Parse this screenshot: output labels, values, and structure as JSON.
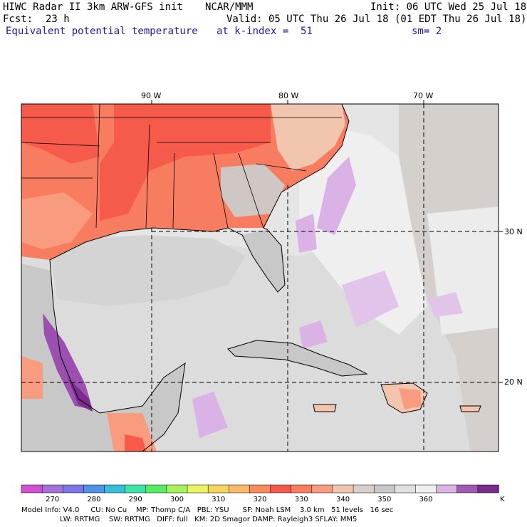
{
  "header": {
    "line1_left": "HIWC Radar II 3km ARW-GFS init",
    "line1_mid": "NCAR/MMM",
    "line1_right": "Init: 06 UTC Wed 25 Jul 18",
    "fcst_label": "Fcst:",
    "fcst_value": "23 h",
    "valid": "Valid: 05 UTC Thu 26 Jul 18 (01 EDT Thu 26 Jul 18)",
    "field_name": "Equivalent potential temperature",
    "k_index": "at k-index =  51",
    "smoothing": "sm= 2"
  },
  "map": {
    "lon_labels": [
      "90 W",
      "80 W",
      "70 W"
    ],
    "lat_labels": [
      "30 N",
      "20 N"
    ],
    "colors": {
      "land_hot": "#f5574a",
      "land_warm": "#f87d60",
      "land_mid": "#f99b7e",
      "land_pale": "#f2c6ae",
      "sea_gray": "#c8c8c8",
      "sea_light": "#e5e5e5",
      "sea_pale": "#efefef",
      "lavender": "#dbb2e6",
      "purple": "#9b50b0",
      "dark_purple": "#7a2c8c"
    }
  },
  "colorbar": {
    "colors": [
      "#d14fd0",
      "#a46fd6",
      "#7c76e6",
      "#4e91e5",
      "#36bfd6",
      "#3ee6a6",
      "#56ed64",
      "#a8f25a",
      "#e9f560",
      "#f6d55f",
      "#fbb866",
      "#f88c5c",
      "#f55a4a",
      "#f87d60",
      "#f99b7e",
      "#f2c6ae",
      "#d8d0cc",
      "#c8c8c8",
      "#e0e0e0",
      "#efefef",
      "#dbb2e6",
      "#a258b4",
      "#7a2c8c"
    ],
    "tick_labels": [
      "270",
      "280",
      "290",
      "300",
      "310",
      "320",
      "330",
      "340",
      "350",
      "360"
    ],
    "unit": "K"
  },
  "footer": {
    "line1": "Model Info: V4.0     CU: No Cu    MP: Thomp C/A   PBL: YSU      SF: Noah LSM    3.0 km   51 levels   16 sec",
    "line2": "                 LW: RRTMG    SW: RRTMG   DIFF: full   KM: 2D Smagor DAMP: Rayleigh3 SFLAY: MM5"
  }
}
